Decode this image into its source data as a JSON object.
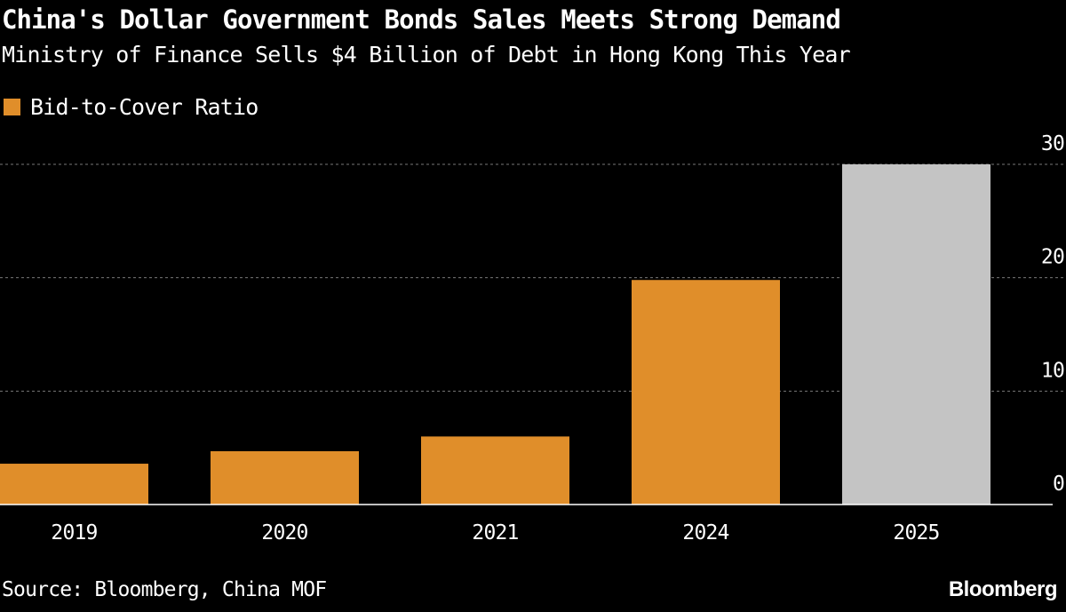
{
  "title": "China's Dollar Government Bonds Sales Meets Strong Demand",
  "subtitle": "Ministry of Finance Sells $4 Billion of Debt in Hong Kong This Year",
  "source": "Source: Bloomberg, China MOF",
  "brand": "Bloomberg",
  "colors": {
    "background": "#000000",
    "text": "#ffffff",
    "series": "#e08e2a",
    "highlight": "#c4c4c4",
    "grid": "#777777",
    "axis": "#ffffff"
  },
  "chart_data": {
    "type": "bar",
    "title": "China's Dollar Government Bonds Sales Meets Strong Demand",
    "subtitle": "Ministry of Finance Sells $4 Billion of Debt in Hong Kong This Year",
    "categories": [
      "2019",
      "2020",
      "2021",
      "2024",
      "2025"
    ],
    "series": [
      {
        "name": "Bid-to-Cover Ratio",
        "values": [
          3.6,
          4.7,
          6.0,
          19.8,
          30.0
        ],
        "color": "#e08e2a"
      }
    ],
    "highlight_category": "2025",
    "highlight_color": "#c4c4c4",
    "ylim": [
      0,
      30
    ],
    "yticks": [
      0,
      10,
      20,
      30
    ],
    "y_axis_position": "right",
    "grid": true,
    "grid_style": "dotted",
    "legend_position": "top-left",
    "xlabel": "",
    "ylabel": ""
  }
}
